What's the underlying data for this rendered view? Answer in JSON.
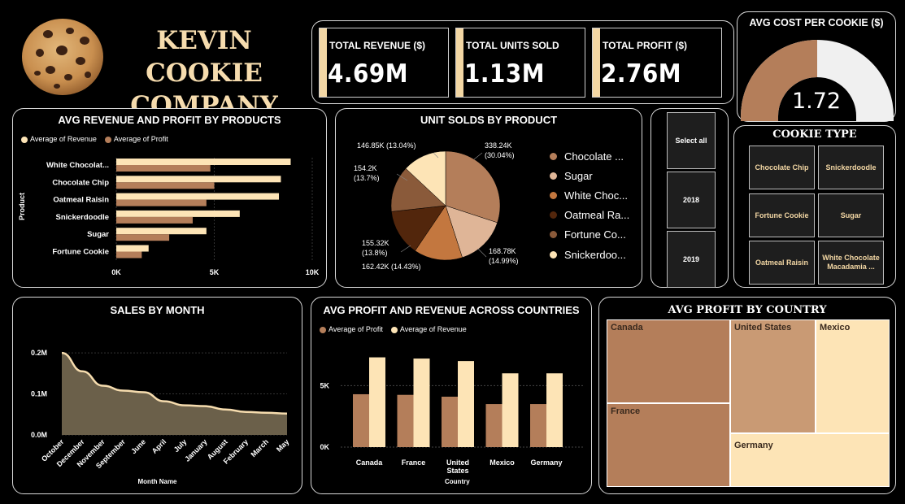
{
  "header": {
    "title_line1": "KEVIN COOKIE",
    "title_line2": "COMPANY",
    "logo_icon": "cookie-icon"
  },
  "kpis": [
    {
      "label": "TOTAL REVENUE ($)",
      "value": "4.69M"
    },
    {
      "label": "TOTAL UNITS SOLD",
      "value": "1.13M"
    },
    {
      "label": "TOTAL PROFIT ($)",
      "value": "2.76M"
    }
  ],
  "gauge": {
    "title": "AVG COST PER COOKIE ($)",
    "value": "1.72",
    "fill_fraction": 0.5,
    "fill_color": "#b47e5a",
    "track_color": "#f0f0f0"
  },
  "slicer": {
    "items": [
      "Select all",
      "2018",
      "2019"
    ]
  },
  "cookie_type": {
    "title": "COOKIE TYPE",
    "items": [
      "Chocolate Chip",
      "Snickerdoodle",
      "Fortune Cookie",
      "Sugar",
      "Oatmeal Raisin",
      "White Chocolate Macadamia ..."
    ]
  },
  "colors": {
    "profit": "#b47e5a",
    "revenue": "#fde4b6",
    "area": "#6b604a",
    "line": "#f6dcae"
  },
  "chart_data": [
    {
      "type": "bar",
      "orientation": "horizontal",
      "title": "AVG REVENUE AND PROFIT BY PRODUCTS",
      "ylabel": "Product",
      "categories": [
        "White Chocolat...",
        "Chocolate Chip",
        "Oatmeal Raisin",
        "Snickerdoodle",
        "Sugar",
        "Fortune Cookie"
      ],
      "series": [
        {
          "name": "Average of  Revenue",
          "values": [
            8900,
            8400,
            8300,
            6300,
            4600,
            1650
          ]
        },
        {
          "name": "Average of  Profit",
          "values": [
            4800,
            5000,
            4600,
            3900,
            2700,
            1300
          ]
        }
      ],
      "xlim": [
        0,
        10000
      ],
      "xticks": [
        "0K",
        "5K",
        "10K"
      ],
      "legend": "top-left"
    },
    {
      "type": "pie",
      "title": "UNIT SOLDS BY PRODUCT",
      "slices": [
        {
          "name": "Chocolate ...",
          "value": 338.24,
          "label": "338.24K (30.04%)",
          "color": "#b47e5a"
        },
        {
          "name": "Sugar",
          "value": 168.78,
          "label": "168.78K (14.99%)",
          "color": "#dfb597"
        },
        {
          "name": "White Choc...",
          "value": 162.42,
          "label": "162.42K (14.43%)",
          "color": "#c3773f"
        },
        {
          "name": "Oatmeal Ra...",
          "value": 155.32,
          "label": "155.32K (13.8%)",
          "color": "#52260c"
        },
        {
          "name": "Fortune Co...",
          "value": 154.2,
          "label": "154.2K (13.7%)",
          "color": "#8a5a3a"
        },
        {
          "name": "Snickerdoo...",
          "value": 146.85,
          "label": "146.85K (13.04%)",
          "color": "#fde4b6"
        }
      ]
    },
    {
      "type": "area",
      "title": "SALES BY MONTH",
      "xlabel": "Month Name",
      "x": [
        "October",
        "December",
        "November",
        "September",
        "June",
        "April",
        "July",
        "January",
        "August",
        "February",
        "March",
        "May"
      ],
      "values": [
        0.2,
        0.155,
        0.12,
        0.108,
        0.104,
        0.082,
        0.072,
        0.07,
        0.062,
        0.056,
        0.054,
        0.052
      ],
      "ylim": [
        0,
        0.22
      ],
      "yticks": [
        "0.0M",
        "0.1M",
        "0.2M"
      ]
    },
    {
      "type": "bar",
      "title": "AVG PROFIT AND REVENUE ACROSS COUNTRIES",
      "xlabel": "Country",
      "categories": [
        "Canada",
        "France",
        "United States",
        "Mexico",
        "Germany"
      ],
      "series": [
        {
          "name": "Average of  Profit",
          "values": [
            4300,
            4250,
            4100,
            3500,
            3500
          ]
        },
        {
          "name": "Average of  Revenue",
          "values": [
            7300,
            7200,
            7000,
            6000,
            6000
          ]
        }
      ],
      "ylim": [
        0,
        8000
      ],
      "yticks": [
        "0K",
        "5K"
      ],
      "legend": "top-left"
    },
    {
      "type": "treemap",
      "title": "AVG PROFIT BY COUNTRY",
      "items": [
        {
          "name": "Canada",
          "color": "#b47e5a"
        },
        {
          "name": "France",
          "color": "#b47e5a"
        },
        {
          "name": "United States",
          "color": "#c99a74"
        },
        {
          "name": "Mexico",
          "color": "#fde4b6"
        },
        {
          "name": "Germany",
          "color": "#fde4b6"
        }
      ]
    }
  ]
}
